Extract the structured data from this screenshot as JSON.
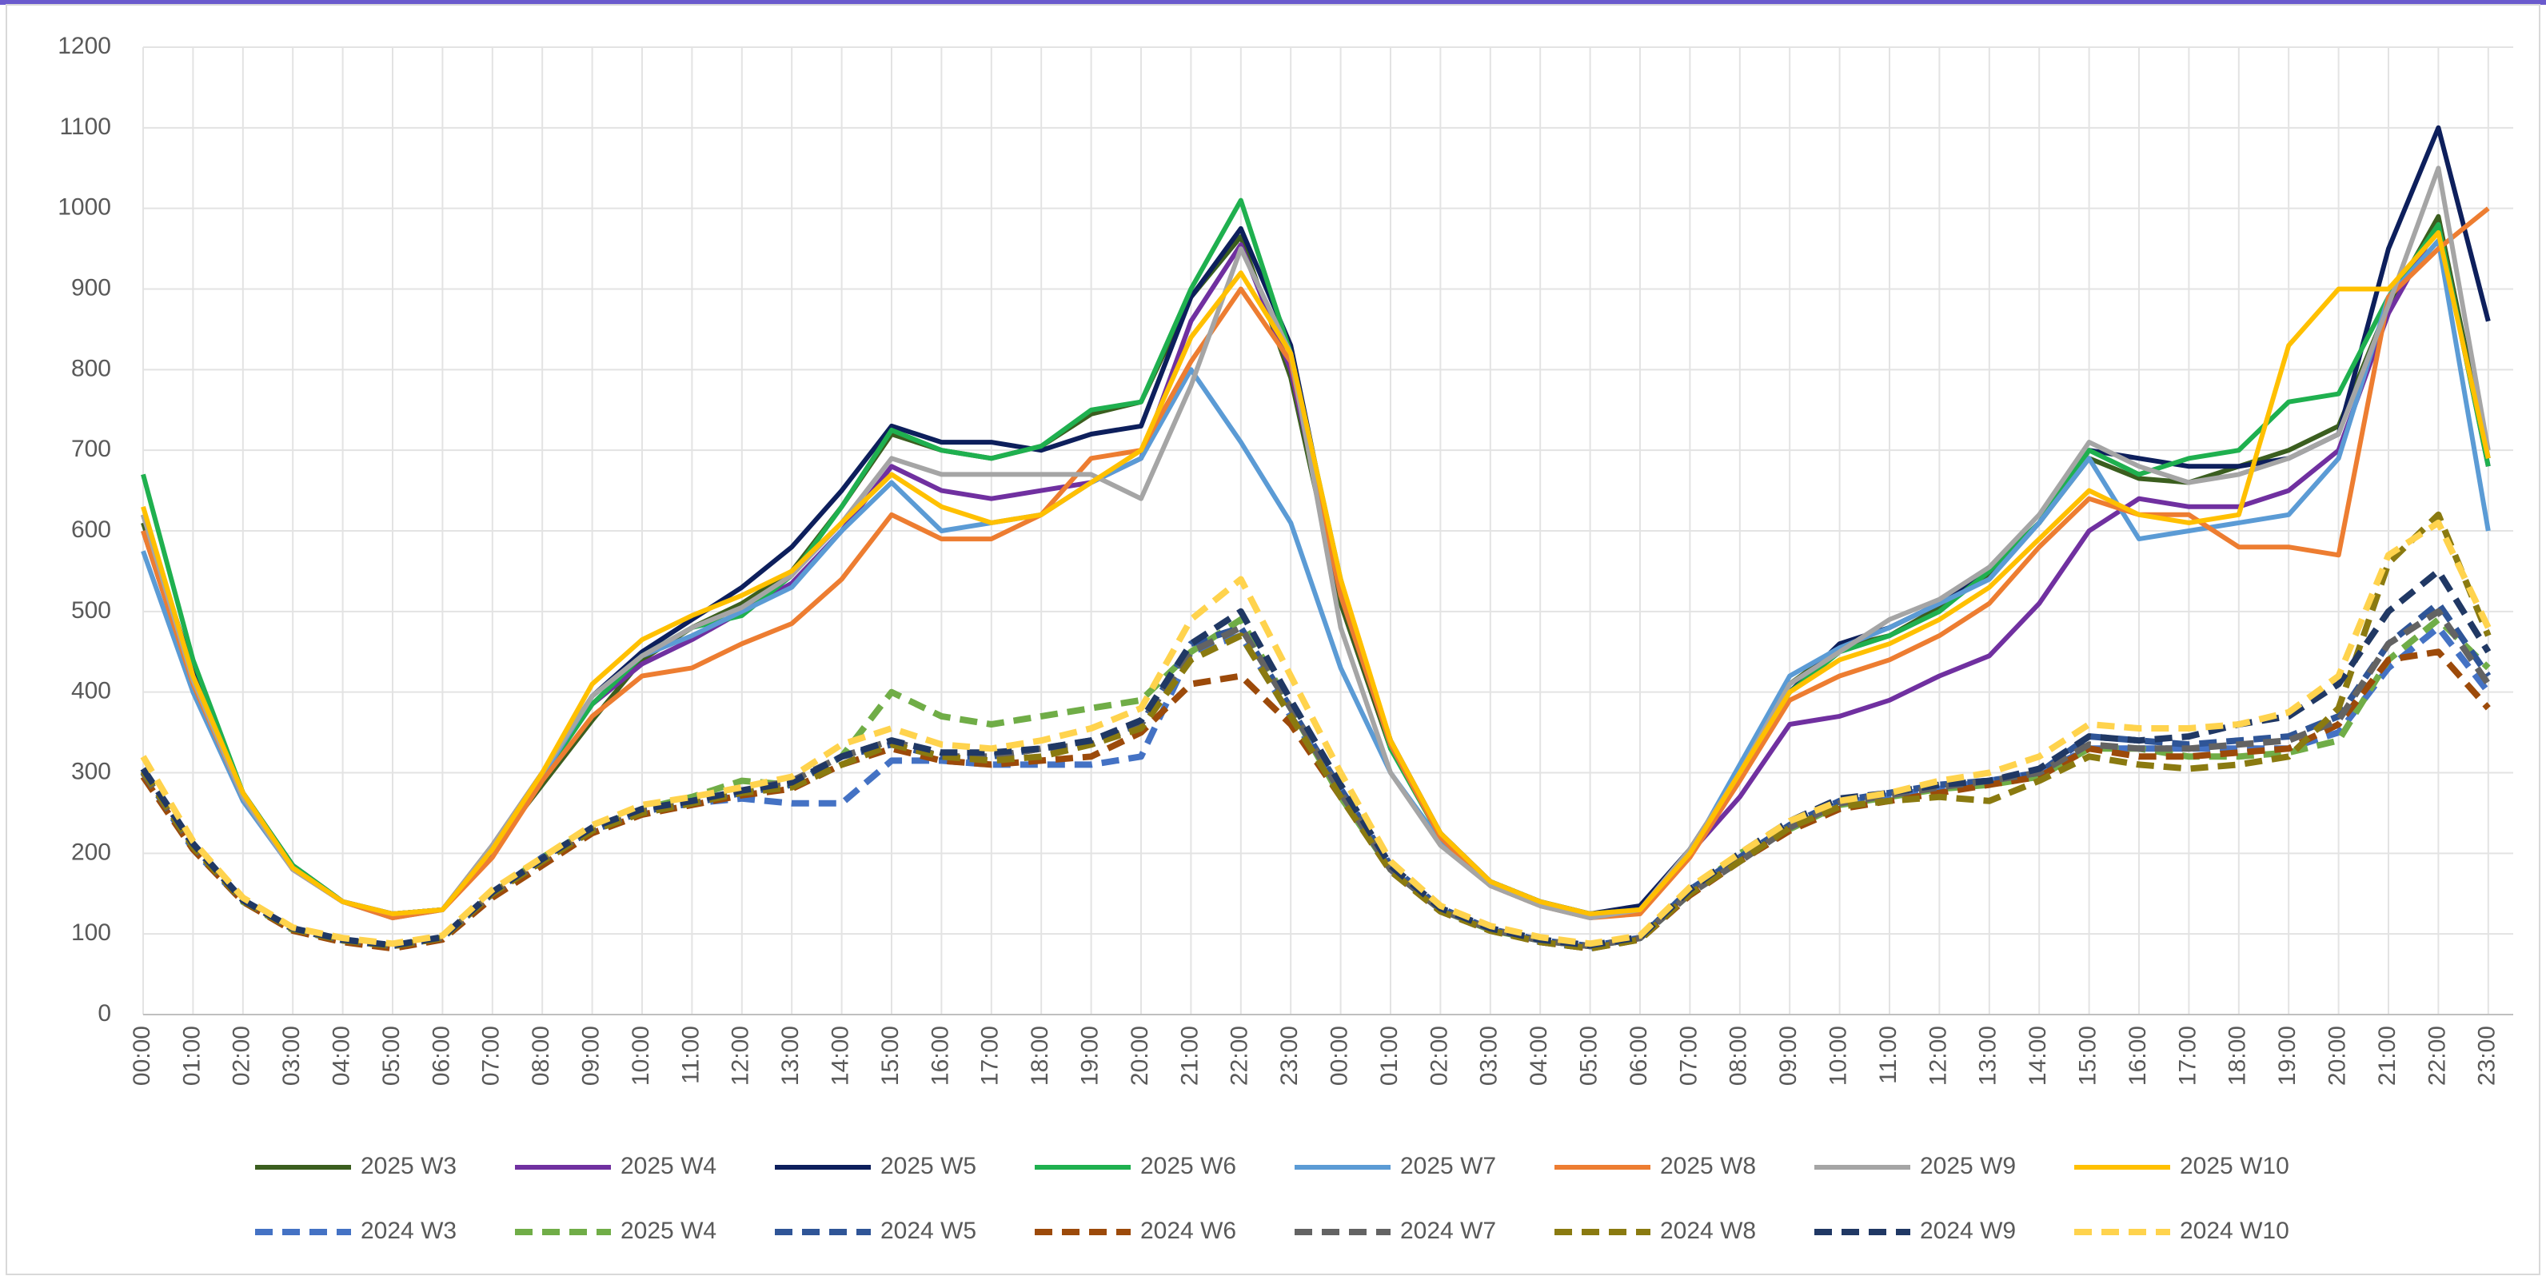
{
  "chart_data": {
    "type": "line",
    "categories": [
      "00:00",
      "01:00",
      "02:00",
      "03:00",
      "04:00",
      "05:00",
      "06:00",
      "07:00",
      "08:00",
      "09:00",
      "10:00",
      "11:00",
      "12:00",
      "13:00",
      "14:00",
      "15:00",
      "16:00",
      "17:00",
      "18:00",
      "19:00",
      "20:00",
      "21:00",
      "22:00",
      "23:00",
      "00:00",
      "01:00",
      "02:00",
      "03:00",
      "04:00",
      "05:00",
      "06:00",
      "07:00",
      "08:00",
      "09:00",
      "10:00",
      "11:00",
      "12:00",
      "13:00",
      "14:00",
      "15:00",
      "16:00",
      "17:00",
      "18:00",
      "19:00",
      "20:00",
      "21:00",
      "22:00",
      "23:00"
    ],
    "ylim": [
      0,
      1200
    ],
    "yticks": [
      0,
      100,
      200,
      300,
      400,
      500,
      600,
      700,
      800,
      900,
      1000,
      1100,
      1200
    ],
    "grid": true,
    "legend": "bottom",
    "series": [
      {
        "name": "2025 W3",
        "color": "#3b5e1f",
        "line_style": "solid",
        "values": [
          610,
          420,
          275,
          185,
          140,
          125,
          130,
          205,
          285,
          365,
          440,
          480,
          510,
          550,
          630,
          720,
          700,
          690,
          705,
          745,
          760,
          890,
          965,
          790,
          510,
          330,
          225,
          165,
          140,
          125,
          130,
          205,
          300,
          410,
          455,
          470,
          505,
          545,
          610,
          690,
          665,
          660,
          680,
          700,
          730,
          880,
          990,
          690
        ]
      },
      {
        "name": "2025 W4",
        "color": "#7030a0",
        "line_style": "solid",
        "values": [
          600,
          410,
          270,
          180,
          140,
          125,
          130,
          200,
          295,
          385,
          435,
          465,
          500,
          535,
          600,
          680,
          650,
          640,
          650,
          660,
          690,
          860,
          955,
          800,
          520,
          335,
          220,
          165,
          140,
          125,
          130,
          200,
          270,
          360,
          370,
          390,
          420,
          445,
          510,
          600,
          640,
          630,
          630,
          650,
          700,
          870,
          980,
          680
        ]
      },
      {
        "name": "2025 W5",
        "color": "#0d1f5c",
        "line_style": "solid",
        "values": [
          620,
          425,
          275,
          185,
          140,
          125,
          130,
          210,
          300,
          395,
          450,
          490,
          530,
          580,
          650,
          730,
          710,
          710,
          700,
          720,
          730,
          890,
          975,
          830,
          530,
          340,
          225,
          165,
          140,
          125,
          135,
          205,
          300,
          400,
          460,
          480,
          510,
          550,
          610,
          700,
          690,
          680,
          680,
          690,
          720,
          950,
          1100,
          860
        ]
      },
      {
        "name": "2025 W6",
        "color": "#1fb04f",
        "line_style": "solid",
        "values": [
          670,
          440,
          275,
          185,
          140,
          125,
          130,
          205,
          295,
          385,
          445,
          480,
          495,
          545,
          630,
          725,
          700,
          690,
          705,
          750,
          760,
          900,
          1010,
          820,
          540,
          330,
          220,
          165,
          140,
          125,
          130,
          200,
          300,
          400,
          450,
          470,
          500,
          550,
          610,
          700,
          670,
          690,
          700,
          760,
          770,
          890,
          980,
          680
        ]
      },
      {
        "name": "2025 W7",
        "color": "#5b9bd5",
        "line_style": "solid",
        "values": [
          575,
          400,
          265,
          180,
          140,
          120,
          130,
          205,
          295,
          395,
          445,
          470,
          500,
          530,
          600,
          660,
          600,
          610,
          620,
          660,
          690,
          800,
          710,
          610,
          430,
          300,
          215,
          160,
          135,
          120,
          130,
          200,
          310,
          420,
          455,
          480,
          510,
          540,
          610,
          690,
          590,
          600,
          610,
          620,
          690,
          890,
          960,
          600
        ]
      },
      {
        "name": "2025 W8",
        "color": "#ed7d31",
        "line_style": "solid",
        "values": [
          600,
          410,
          270,
          180,
          140,
          120,
          130,
          195,
          290,
          370,
          420,
          430,
          460,
          485,
          540,
          620,
          590,
          590,
          620,
          690,
          700,
          810,
          900,
          810,
          520,
          335,
          220,
          160,
          135,
          120,
          125,
          195,
          290,
          390,
          420,
          440,
          470,
          510,
          580,
          640,
          620,
          620,
          580,
          580,
          570,
          890,
          950,
          1000
        ]
      },
      {
        "name": "2025 W9",
        "color": "#a5a5a5",
        "line_style": "solid",
        "values": [
          620,
          415,
          270,
          180,
          140,
          125,
          130,
          210,
          300,
          395,
          445,
          480,
          505,
          545,
          610,
          690,
          670,
          670,
          670,
          670,
          640,
          780,
          950,
          820,
          480,
          300,
          210,
          160,
          135,
          120,
          130,
          205,
          300,
          410,
          450,
          490,
          515,
          555,
          620,
          710,
          680,
          660,
          670,
          690,
          720,
          880,
          1050,
          700
        ]
      },
      {
        "name": "2025 W10",
        "color": "#ffc000",
        "line_style": "solid",
        "values": [
          630,
          420,
          275,
          182,
          140,
          125,
          130,
          205,
          300,
          410,
          465,
          495,
          520,
          550,
          610,
          670,
          630,
          610,
          620,
          660,
          700,
          840,
          920,
          820,
          540,
          340,
          225,
          165,
          140,
          125,
          130,
          200,
          300,
          400,
          440,
          460,
          490,
          530,
          590,
          650,
          620,
          610,
          620,
          830,
          900,
          900,
          970,
          690
        ]
      },
      {
        "name": "2024 W3",
        "color": "#4472c4",
        "line_style": "dashed",
        "values": [
          300,
          205,
          140,
          105,
          92,
          85,
          95,
          150,
          190,
          228,
          250,
          262,
          268,
          262,
          262,
          315,
          315,
          310,
          310,
          310,
          320,
          450,
          470,
          370,
          280,
          180,
          130,
          105,
          90,
          82,
          95,
          150,
          190,
          230,
          262,
          272,
          280,
          290,
          300,
          330,
          330,
          330,
          330,
          330,
          350,
          430,
          480,
          400
        ]
      },
      {
        "name": "2025 W4",
        "color": "#70ad47",
        "line_style": "dashed",
        "values": [
          300,
          210,
          140,
          105,
          92,
          85,
          95,
          150,
          195,
          230,
          255,
          270,
          290,
          285,
          320,
          400,
          370,
          360,
          370,
          380,
          390,
          450,
          490,
          380,
          270,
          180,
          130,
          105,
          92,
          85,
          95,
          150,
          200,
          230,
          260,
          270,
          280,
          285,
          295,
          330,
          330,
          320,
          320,
          325,
          340,
          440,
          490,
          430
        ]
      },
      {
        "name": "2024 W5",
        "color": "#2f5597",
        "line_style": "dashed",
        "values": [
          305,
          210,
          142,
          106,
          92,
          85,
          95,
          150,
          195,
          228,
          252,
          262,
          275,
          285,
          320,
          335,
          320,
          320,
          330,
          340,
          360,
          460,
          480,
          380,
          280,
          185,
          132,
          106,
          92,
          85,
          95,
          155,
          195,
          235,
          265,
          275,
          285,
          290,
          300,
          345,
          340,
          335,
          340,
          345,
          370,
          460,
          510,
          420
        ]
      },
      {
        "name": "2024 W6",
        "color": "#9c4a0a",
        "line_style": "dashed",
        "values": [
          295,
          205,
          140,
          104,
          90,
          82,
          93,
          145,
          185,
          225,
          248,
          260,
          272,
          280,
          310,
          330,
          315,
          310,
          315,
          320,
          350,
          410,
          420,
          360,
          270,
          178,
          128,
          104,
          90,
          82,
          93,
          148,
          190,
          228,
          255,
          265,
          275,
          285,
          295,
          330,
          320,
          320,
          325,
          330,
          360,
          440,
          450,
          380
        ]
      },
      {
        "name": "2024 W7",
        "color": "#636363",
        "line_style": "dashed",
        "values": [
          300,
          208,
          142,
          106,
          92,
          85,
          95,
          150,
          190,
          230,
          252,
          262,
          278,
          290,
          320,
          340,
          320,
          320,
          330,
          335,
          360,
          450,
          480,
          380,
          275,
          180,
          130,
          106,
          92,
          85,
          95,
          150,
          190,
          232,
          262,
          272,
          282,
          290,
          300,
          335,
          330,
          330,
          335,
          340,
          365,
          460,
          500,
          410
        ]
      },
      {
        "name": "2024 W8",
        "color": "#8a7a10",
        "line_style": "dashed",
        "values": [
          302,
          208,
          141,
          106,
          92,
          85,
          95,
          150,
          190,
          228,
          250,
          262,
          275,
          282,
          310,
          335,
          320,
          315,
          320,
          335,
          355,
          440,
          470,
          370,
          270,
          178,
          128,
          104,
          90,
          82,
          93,
          150,
          190,
          232,
          258,
          265,
          270,
          265,
          290,
          320,
          310,
          305,
          310,
          320,
          380,
          560,
          620,
          470
        ]
      },
      {
        "name": "2024 W9",
        "color": "#203864",
        "line_style": "dashed",
        "values": [
          305,
          212,
          142,
          107,
          93,
          86,
          96,
          152,
          193,
          232,
          255,
          265,
          278,
          288,
          320,
          340,
          325,
          325,
          330,
          340,
          365,
          460,
          500,
          390,
          285,
          185,
          132,
          107,
          93,
          86,
          96,
          155,
          200,
          240,
          268,
          275,
          285,
          290,
          305,
          345,
          340,
          345,
          360,
          370,
          410,
          500,
          550,
          450
        ]
      },
      {
        "name": "2024 W10",
        "color": "#ffd34d",
        "line_style": "dashed",
        "values": [
          320,
          215,
          145,
          108,
          95,
          88,
          98,
          155,
          195,
          235,
          260,
          270,
          282,
          295,
          335,
          355,
          335,
          330,
          340,
          355,
          380,
          490,
          540,
          420,
          300,
          190,
          135,
          110,
          96,
          88,
          98,
          158,
          200,
          240,
          265,
          275,
          290,
          300,
          320,
          360,
          355,
          355,
          360,
          375,
          420,
          570,
          610,
          480
        ]
      }
    ]
  }
}
